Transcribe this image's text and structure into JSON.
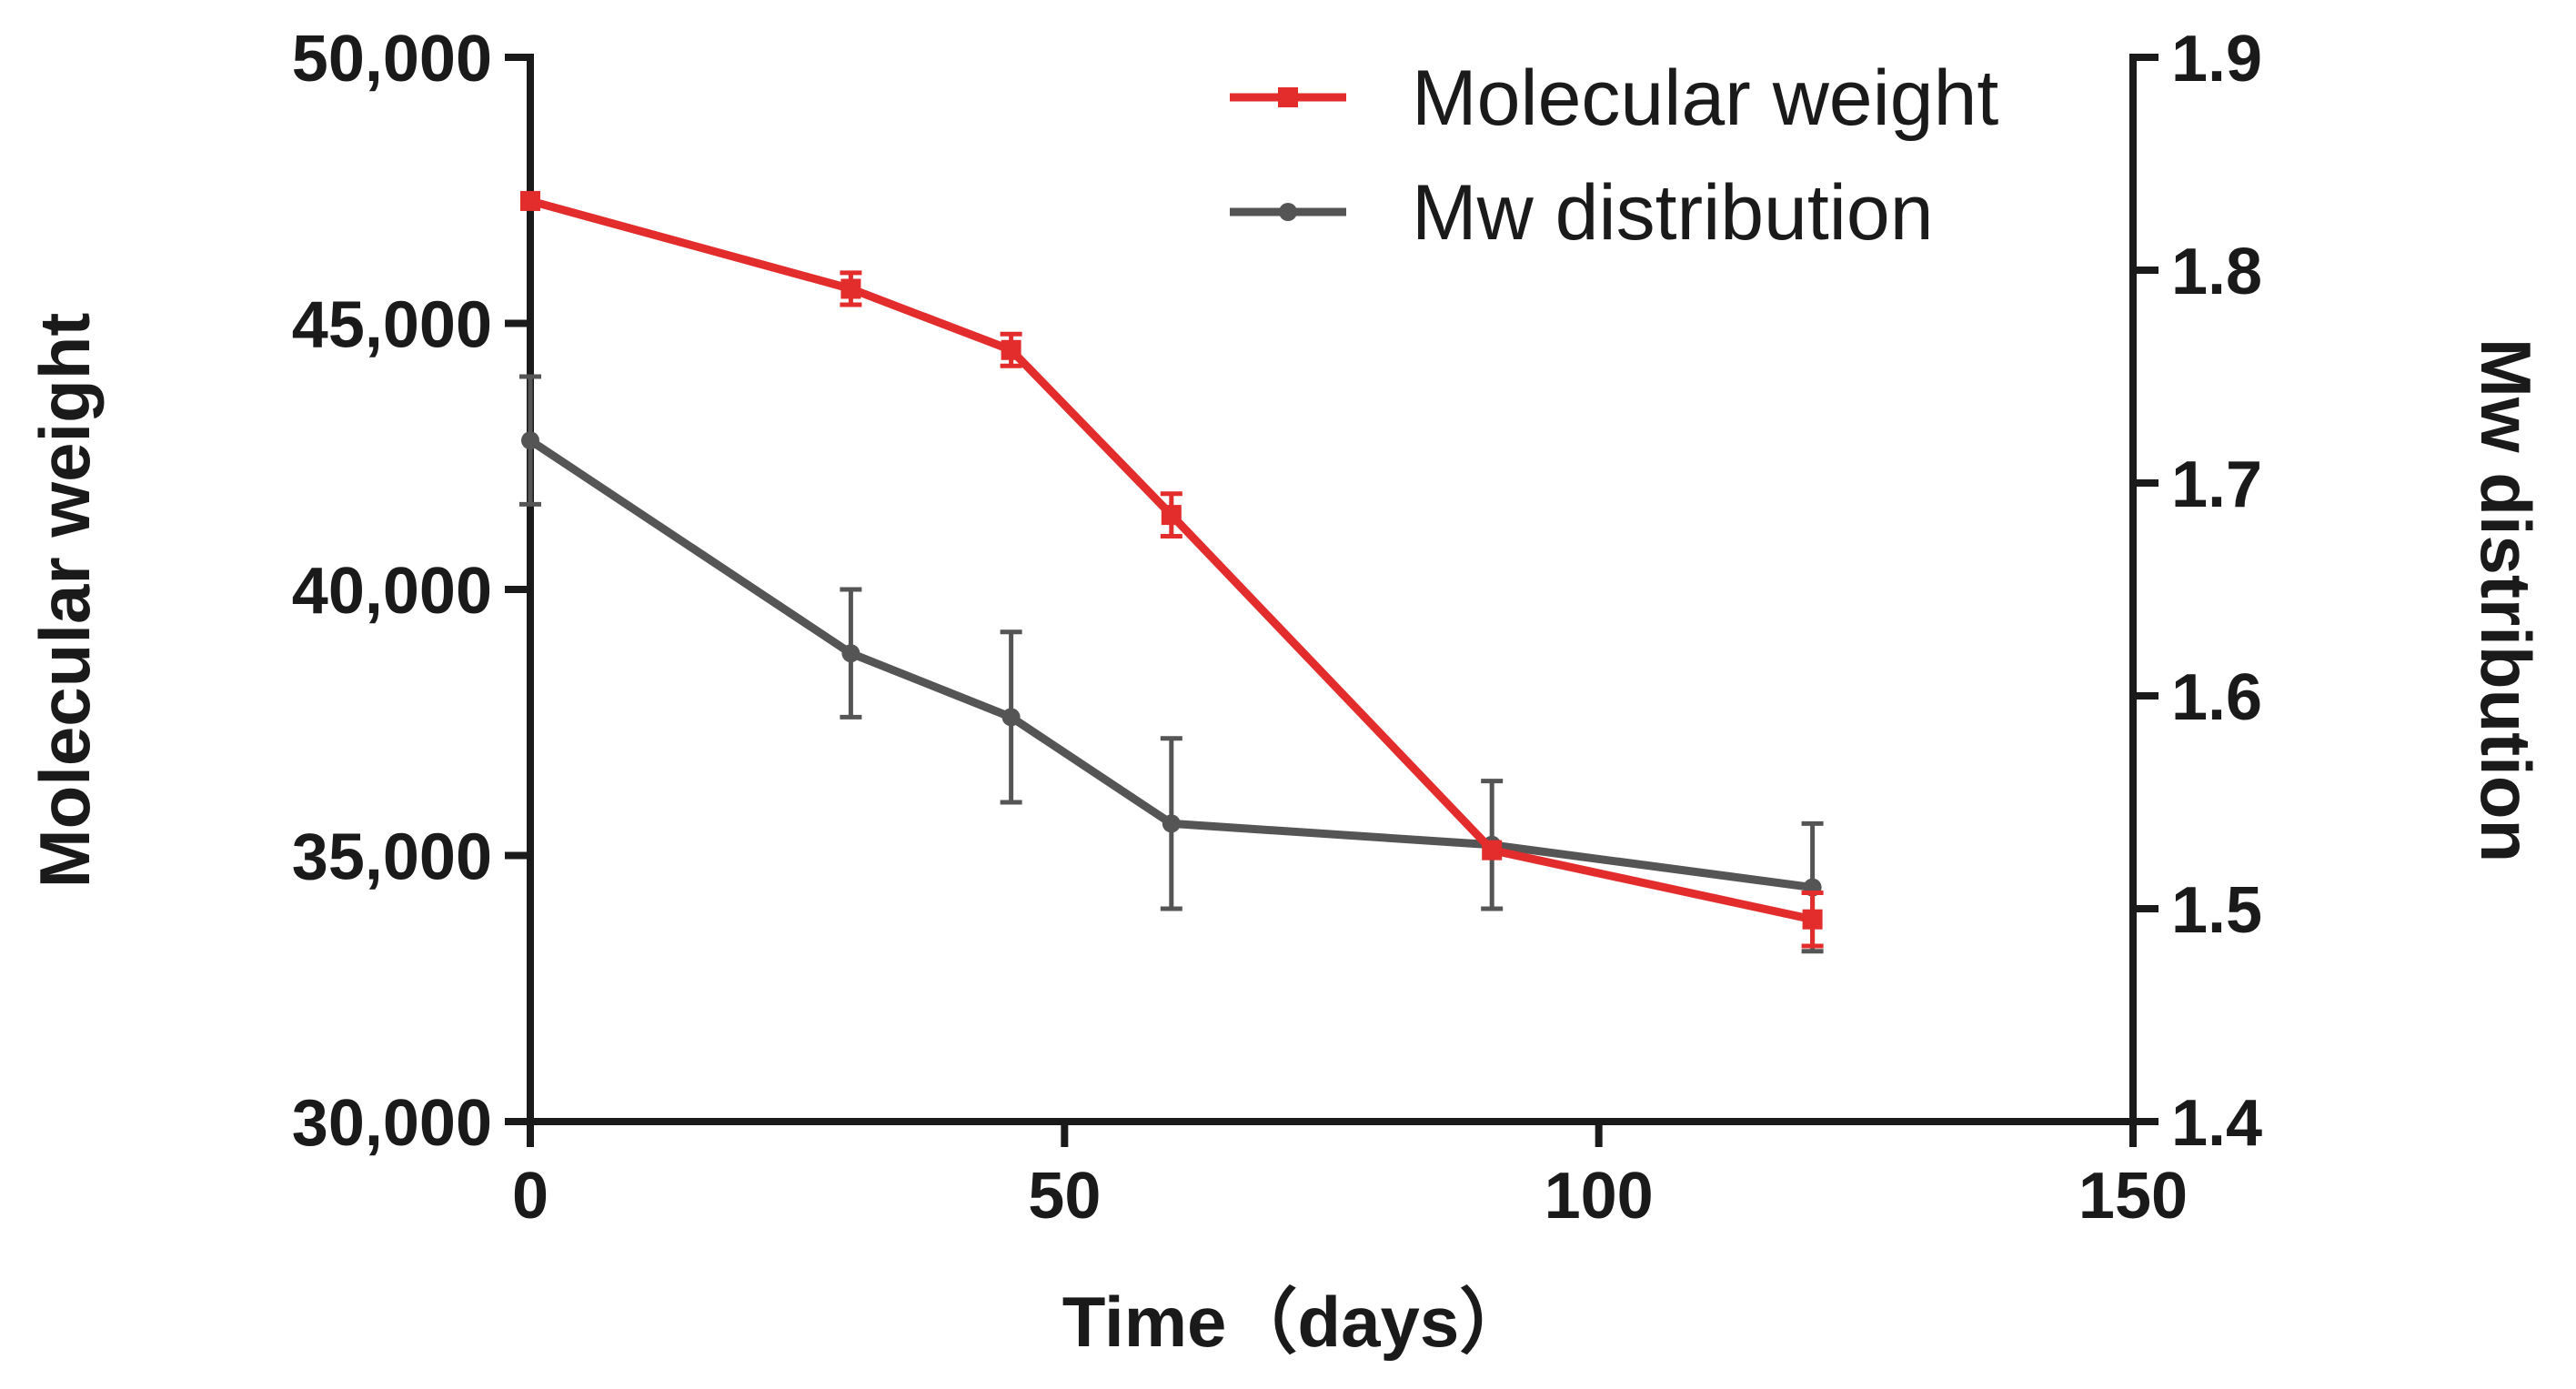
{
  "chart_data": {
    "type": "line",
    "xlabel": "Time（days）",
    "ylabel_left": "Molecular weight",
    "ylabel_right": "Mw distribution",
    "xlim": [
      0,
      150
    ],
    "ylim_left": [
      30000,
      50000
    ],
    "ylim_right": [
      1.4,
      1.9
    ],
    "x_ticks": [
      0,
      50,
      100,
      150
    ],
    "x_tick_labels": [
      "0",
      "50",
      "100",
      "150"
    ],
    "y_left_ticks": [
      30000,
      35000,
      40000,
      45000,
      50000
    ],
    "y_left_tick_labels": [
      "30,000",
      "35,000",
      "40,000",
      "45,000",
      "50,000"
    ],
    "y_right_ticks": [
      1.4,
      1.5,
      1.6,
      1.7,
      1.8,
      1.9
    ],
    "y_right_tick_labels": [
      "1.4",
      "1.5",
      "1.6",
      "1.7",
      "1.8",
      "1.9"
    ],
    "grid": false,
    "legend_position": "top-right",
    "series": [
      {
        "name": "Molecular weight",
        "axis": "left",
        "color": "#e32d2d",
        "marker": "square",
        "x": [
          0,
          30,
          45,
          60,
          90,
          120
        ],
        "y": [
          47300,
          45650,
          44500,
          41400,
          35100,
          33800
        ],
        "error": [
          0,
          300,
          300,
          400,
          0,
          500
        ]
      },
      {
        "name": "Mw distribution",
        "axis": "right",
        "color": "#555555",
        "marker": "circle",
        "x": [
          0,
          30,
          45,
          60,
          90,
          120
        ],
        "y": [
          1.72,
          1.62,
          1.59,
          1.54,
          1.53,
          1.51
        ],
        "error": [
          0.03,
          0.03,
          0.04,
          0.04,
          0.03,
          0.03
        ]
      }
    ]
  }
}
